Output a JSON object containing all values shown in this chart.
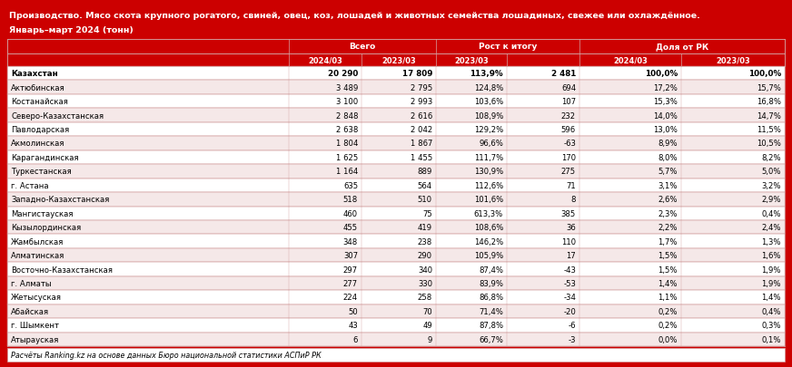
{
  "title_line1": "Производство. Мясо скота крупного рогатого, свиней, овец, коз, лошадей и животных семейства лошадиных, свежее или охлаждённое.",
  "title_line2": "Январь–март 2024 (тонн)",
  "footer": "Расчёты Ranking.kz на основе данных Бюро национальной статистики АСПиР РК",
  "header_bg": "#cc0000",
  "header_text": "#ffffff",
  "row_bg_even": "#ffffff",
  "row_bg_odd": "#f5e8e8",
  "border_color": "#d4a0a0",
  "text_color": "#000000",
  "group_headers": [
    "Всего",
    "Рост к итогу",
    "Доля от РК"
  ],
  "sub_headers": [
    "2024/03",
    "2023/03",
    "2023/03",
    "",
    "2024/03",
    "2023/03"
  ],
  "rows": [
    [
      "Казахстан",
      "20 290",
      "17 809",
      "113,9%",
      "2 481",
      "100,0%",
      "100,0%"
    ],
    [
      "Актюбинская",
      "3 489",
      "2 795",
      "124,8%",
      "694",
      "17,2%",
      "15,7%"
    ],
    [
      "Костанайская",
      "3 100",
      "2 993",
      "103,6%",
      "107",
      "15,3%",
      "16,8%"
    ],
    [
      "Северо-Казахстанская",
      "2 848",
      "2 616",
      "108,9%",
      "232",
      "14,0%",
      "14,7%"
    ],
    [
      "Павлодарская",
      "2 638",
      "2 042",
      "129,2%",
      "596",
      "13,0%",
      "11,5%"
    ],
    [
      "Акмолинская",
      "1 804",
      "1 867",
      "96,6%",
      "-63",
      "8,9%",
      "10,5%"
    ],
    [
      "Карагандинская",
      "1 625",
      "1 455",
      "111,7%",
      "170",
      "8,0%",
      "8,2%"
    ],
    [
      "Туркестанская",
      "1 164",
      "889",
      "130,9%",
      "275",
      "5,7%",
      "5,0%"
    ],
    [
      "г. Астана",
      "635",
      "564",
      "112,6%",
      "71",
      "3,1%",
      "3,2%"
    ],
    [
      "Западно-Казахстанская",
      "518",
      "510",
      "101,6%",
      "8",
      "2,6%",
      "2,9%"
    ],
    [
      "Мангистауская",
      "460",
      "75",
      "613,3%",
      "385",
      "2,3%",
      "0,4%"
    ],
    [
      "Кызылординская",
      "455",
      "419",
      "108,6%",
      "36",
      "2,2%",
      "2,4%"
    ],
    [
      "Жамбылская",
      "348",
      "238",
      "146,2%",
      "110",
      "1,7%",
      "1,3%"
    ],
    [
      "Алматинская",
      "307",
      "290",
      "105,9%",
      "17",
      "1,5%",
      "1,6%"
    ],
    [
      "Восточно-Казахстанская",
      "297",
      "340",
      "87,4%",
      "-43",
      "1,5%",
      "1,9%"
    ],
    [
      "г. Алматы",
      "277",
      "330",
      "83,9%",
      "-53",
      "1,4%",
      "1,9%"
    ],
    [
      "Жетысуская",
      "224",
      "258",
      "86,8%",
      "-34",
      "1,1%",
      "1,4%"
    ],
    [
      "Абайская",
      "50",
      "70",
      "71,4%",
      "-20",
      "0,2%",
      "0,4%"
    ],
    [
      "г. Шымкент",
      "43",
      "49",
      "87,8%",
      "-6",
      "0,2%",
      "0,3%"
    ],
    [
      "Атырауская",
      "6",
      "9",
      "66,7%",
      "-3",
      "0,0%",
      "0,1%"
    ]
  ]
}
